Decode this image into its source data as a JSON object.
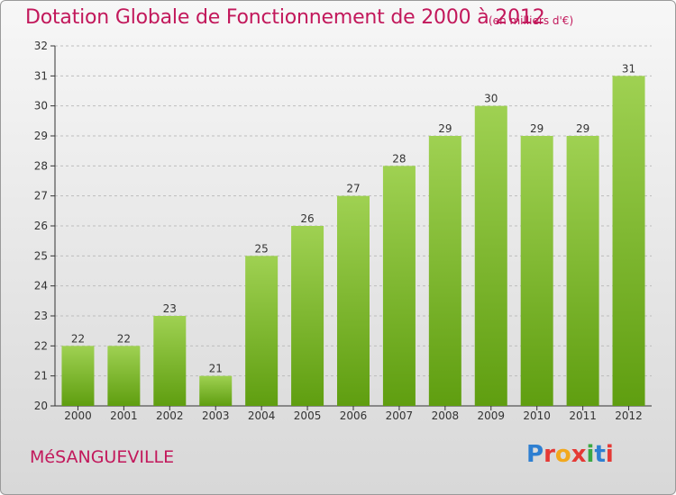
{
  "header": {
    "title": "Dotation Globale de Fonctionnement de 2000 à 2012",
    "subtitle": "(en milliers d'€)"
  },
  "footer": {
    "commune": "MéSANGUEVILLE",
    "logo_text": "Proxiti",
    "logo_colors": [
      "#2e7fd1",
      "#e53935",
      "#f2a81d",
      "#e53935",
      "#3aa843",
      "#2e7fd1",
      "#e53935"
    ]
  },
  "colors": {
    "title": "#c2185b",
    "bar_top": "#9fd152",
    "bar_bottom": "#5f9e10",
    "grid": "#bdbdbd"
  },
  "chart_data": {
    "type": "bar",
    "categories": [
      "2000",
      "2001",
      "2002",
      "2003",
      "2004",
      "2005",
      "2006",
      "2007",
      "2008",
      "2009",
      "2010",
      "2011",
      "2012"
    ],
    "values": [
      22,
      22,
      23,
      21,
      25,
      26,
      27,
      28,
      29,
      30,
      29,
      29,
      31
    ],
    "ylim": [
      20,
      32
    ],
    "yticks": [
      20,
      21,
      22,
      23,
      24,
      25,
      26,
      27,
      28,
      29,
      30,
      31,
      32
    ],
    "xlabel": "",
    "ylabel": "",
    "grid": true,
    "legend": "none"
  }
}
